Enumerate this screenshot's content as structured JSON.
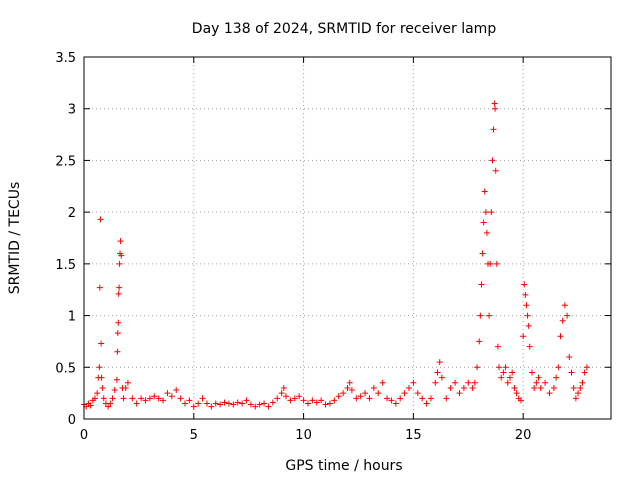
{
  "chart_data": {
    "type": "scatter",
    "title": "Day 138 of 2024, SRMTID for receiver lamp",
    "xlabel": "GPS time / hours",
    "ylabel": "SRMTID / TECUs",
    "xlim": [
      0,
      24
    ],
    "ylim": [
      0,
      3.5
    ],
    "grid": true,
    "marker": "+",
    "color": "#ff0000",
    "x_ticks": [
      0,
      5,
      10,
      15,
      20
    ],
    "x_tick_labels": [
      "0",
      "5",
      "10",
      "15",
      "20"
    ],
    "y_ticks": [
      0,
      0.5,
      1,
      1.5,
      2,
      2.5,
      3,
      3.5
    ],
    "y_tick_labels": [
      "0",
      "0.5",
      "1",
      "1.5",
      "2",
      "2.5",
      "3",
      "3.5"
    ],
    "series": [
      {
        "name": "SRMTID",
        "points": [
          [
            0.0,
            0.14
          ],
          [
            0.1,
            0.12
          ],
          [
            0.2,
            0.15
          ],
          [
            0.3,
            0.13
          ],
          [
            0.4,
            0.18
          ],
          [
            0.5,
            0.2
          ],
          [
            0.6,
            0.25
          ],
          [
            0.65,
            0.4
          ],
          [
            0.7,
            0.5
          ],
          [
            0.72,
            1.27
          ],
          [
            0.75,
            1.93
          ],
          [
            0.78,
            0.73
          ],
          [
            0.8,
            0.4
          ],
          [
            0.85,
            0.3
          ],
          [
            0.9,
            0.2
          ],
          [
            1.0,
            0.15
          ],
          [
            1.1,
            0.12
          ],
          [
            1.2,
            0.15
          ],
          [
            1.3,
            0.2
          ],
          [
            1.4,
            0.28
          ],
          [
            1.5,
            0.38
          ],
          [
            1.52,
            0.65
          ],
          [
            1.54,
            0.83
          ],
          [
            1.56,
            0.93
          ],
          [
            1.58,
            1.21
          ],
          [
            1.6,
            1.27
          ],
          [
            1.62,
            1.5
          ],
          [
            1.64,
            1.6
          ],
          [
            1.66,
            1.72
          ],
          [
            1.7,
            1.58
          ],
          [
            1.75,
            0.3
          ],
          [
            1.8,
            0.2
          ],
          [
            1.9,
            0.3
          ],
          [
            2.0,
            0.35
          ],
          [
            2.2,
            0.2
          ],
          [
            2.4,
            0.15
          ],
          [
            2.6,
            0.2
          ],
          [
            2.8,
            0.18
          ],
          [
            3.0,
            0.2
          ],
          [
            3.2,
            0.22
          ],
          [
            3.4,
            0.2
          ],
          [
            3.6,
            0.18
          ],
          [
            3.8,
            0.25
          ],
          [
            4.0,
            0.22
          ],
          [
            4.2,
            0.28
          ],
          [
            4.4,
            0.2
          ],
          [
            4.6,
            0.15
          ],
          [
            4.8,
            0.18
          ],
          [
            5.0,
            0.12
          ],
          [
            5.2,
            0.15
          ],
          [
            5.4,
            0.2
          ],
          [
            5.6,
            0.15
          ],
          [
            5.8,
            0.12
          ],
          [
            6.0,
            0.15
          ],
          [
            6.2,
            0.14
          ],
          [
            6.4,
            0.16
          ],
          [
            6.6,
            0.15
          ],
          [
            6.8,
            0.14
          ],
          [
            7.0,
            0.16
          ],
          [
            7.2,
            0.15
          ],
          [
            7.4,
            0.18
          ],
          [
            7.6,
            0.14
          ],
          [
            7.8,
            0.12
          ],
          [
            8.0,
            0.14
          ],
          [
            8.2,
            0.15
          ],
          [
            8.4,
            0.12
          ],
          [
            8.6,
            0.16
          ],
          [
            8.8,
            0.2
          ],
          [
            9.0,
            0.25
          ],
          [
            9.1,
            0.3
          ],
          [
            9.2,
            0.22
          ],
          [
            9.4,
            0.18
          ],
          [
            9.6,
            0.2
          ],
          [
            9.8,
            0.22
          ],
          [
            10.0,
            0.18
          ],
          [
            10.2,
            0.15
          ],
          [
            10.4,
            0.18
          ],
          [
            10.6,
            0.16
          ],
          [
            10.8,
            0.18
          ],
          [
            11.0,
            0.14
          ],
          [
            11.2,
            0.15
          ],
          [
            11.4,
            0.18
          ],
          [
            11.6,
            0.22
          ],
          [
            11.8,
            0.25
          ],
          [
            12.0,
            0.3
          ],
          [
            12.1,
            0.35
          ],
          [
            12.2,
            0.28
          ],
          [
            12.4,
            0.2
          ],
          [
            12.6,
            0.22
          ],
          [
            12.8,
            0.25
          ],
          [
            13.0,
            0.2
          ],
          [
            13.2,
            0.3
          ],
          [
            13.4,
            0.25
          ],
          [
            13.6,
            0.35
          ],
          [
            13.8,
            0.2
          ],
          [
            14.0,
            0.18
          ],
          [
            14.2,
            0.15
          ],
          [
            14.4,
            0.2
          ],
          [
            14.6,
            0.25
          ],
          [
            14.8,
            0.3
          ],
          [
            15.0,
            0.35
          ],
          [
            15.2,
            0.25
          ],
          [
            15.4,
            0.2
          ],
          [
            15.6,
            0.15
          ],
          [
            15.8,
            0.2
          ],
          [
            16.0,
            0.35
          ],
          [
            16.1,
            0.45
          ],
          [
            16.2,
            0.55
          ],
          [
            16.3,
            0.4
          ],
          [
            16.5,
            0.2
          ],
          [
            16.7,
            0.3
          ],
          [
            16.9,
            0.35
          ],
          [
            17.1,
            0.25
          ],
          [
            17.3,
            0.3
          ],
          [
            17.5,
            0.35
          ],
          [
            17.7,
            0.3
          ],
          [
            17.8,
            0.35
          ],
          [
            17.9,
            0.5
          ],
          [
            18.0,
            0.75
          ],
          [
            18.05,
            1.0
          ],
          [
            18.1,
            1.3
          ],
          [
            18.15,
            1.6
          ],
          [
            18.2,
            1.9
          ],
          [
            18.25,
            2.2
          ],
          [
            18.3,
            2.0
          ],
          [
            18.35,
            1.8
          ],
          [
            18.4,
            1.5
          ],
          [
            18.45,
            1.0
          ],
          [
            18.5,
            1.5
          ],
          [
            18.55,
            2.0
          ],
          [
            18.6,
            2.5
          ],
          [
            18.65,
            2.8
          ],
          [
            18.7,
            3.05
          ],
          [
            18.72,
            3.0
          ],
          [
            18.75,
            2.4
          ],
          [
            18.8,
            1.5
          ],
          [
            18.85,
            0.7
          ],
          [
            18.9,
            0.5
          ],
          [
            19.0,
            0.4
          ],
          [
            19.1,
            0.45
          ],
          [
            19.2,
            0.5
          ],
          [
            19.3,
            0.35
          ],
          [
            19.4,
            0.4
          ],
          [
            19.5,
            0.45
          ],
          [
            19.6,
            0.3
          ],
          [
            19.7,
            0.25
          ],
          [
            19.8,
            0.2
          ],
          [
            19.9,
            0.18
          ],
          [
            20.0,
            0.8
          ],
          [
            20.05,
            1.3
          ],
          [
            20.1,
            1.2
          ],
          [
            20.15,
            1.1
          ],
          [
            20.2,
            1.0
          ],
          [
            20.25,
            0.9
          ],
          [
            20.3,
            0.7
          ],
          [
            20.4,
            0.45
          ],
          [
            20.5,
            0.3
          ],
          [
            20.6,
            0.35
          ],
          [
            20.7,
            0.4
          ],
          [
            20.8,
            0.3
          ],
          [
            21.0,
            0.35
          ],
          [
            21.2,
            0.25
          ],
          [
            21.4,
            0.3
          ],
          [
            21.5,
            0.4
          ],
          [
            21.6,
            0.5
          ],
          [
            21.7,
            0.8
          ],
          [
            21.8,
            0.95
          ],
          [
            21.9,
            1.1
          ],
          [
            22.0,
            1.0
          ],
          [
            22.1,
            0.6
          ],
          [
            22.2,
            0.45
          ],
          [
            22.3,
            0.3
          ],
          [
            22.4,
            0.2
          ],
          [
            22.5,
            0.25
          ],
          [
            22.6,
            0.3
          ],
          [
            22.7,
            0.35
          ],
          [
            22.8,
            0.45
          ],
          [
            22.9,
            0.5
          ]
        ]
      }
    ]
  }
}
